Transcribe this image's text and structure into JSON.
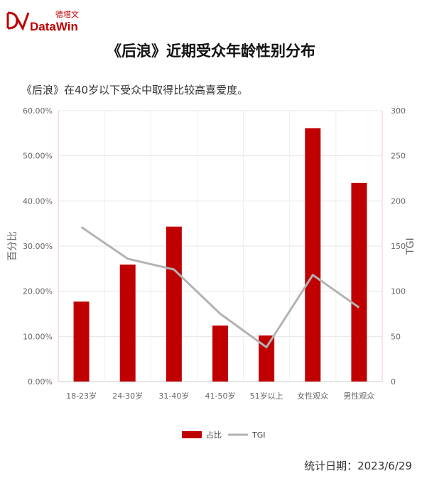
{
  "header": {
    "logo_cn": "德塔文",
    "logo_en": "DataWin",
    "title": "《后浪》近期受众年龄性别分布",
    "subtitle": "《后浪》在40岁以下受众中取得比较高喜爱度。"
  },
  "footer": {
    "date_text": "统计日期：2023/6/29"
  },
  "colors": {
    "bar": "#c00000",
    "line": "#b3b3b3",
    "brand": "#c00000"
  },
  "chart_data": {
    "type": "bar",
    "categories": [
      "18-23岁",
      "24-30岁",
      "31-40岁",
      "41-50岁",
      "51岁以上",
      "女性观众",
      "男性观众"
    ],
    "series": [
      {
        "name": "占比",
        "type": "bar",
        "axis": "left",
        "values": [
          17.7,
          25.9,
          34.3,
          12.4,
          10.2,
          56.1,
          44.0
        ]
      },
      {
        "name": "TGI",
        "type": "line",
        "axis": "right",
        "values": [
          171,
          136,
          124,
          75,
          38,
          118,
          82
        ]
      }
    ],
    "ylabel": "百分比",
    "y2label": "TGI",
    "ylim": [
      0,
      60
    ],
    "y2lim": [
      0,
      300
    ],
    "yticks": [
      "0.00%",
      "10.00%",
      "20.00%",
      "30.00%",
      "40.00%",
      "50.00%",
      "60.00%"
    ],
    "y2ticks": [
      "0",
      "50",
      "100",
      "150",
      "200",
      "250",
      "300"
    ],
    "grid": true,
    "legend_position": "bottom"
  }
}
